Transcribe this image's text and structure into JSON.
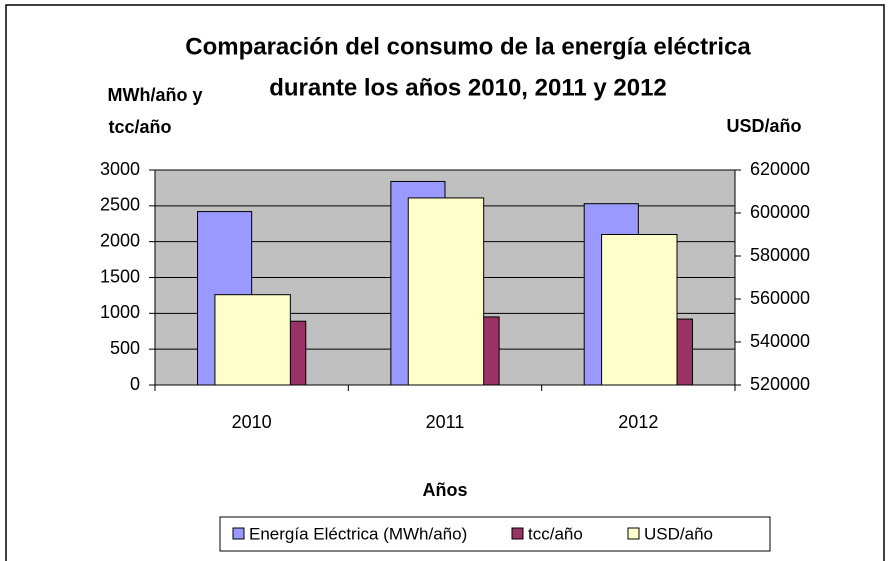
{
  "chart_data": {
    "type": "bar",
    "title": [
      "Comparación del consumo de la energía eléctrica",
      "durante los años 2010, 2011 y 2012"
    ],
    "y_label": [
      "MWh/año y",
      "tcc/año"
    ],
    "y2_label": "USD/año",
    "x_label": "Años",
    "categories": [
      "2010",
      "2011",
      "2012"
    ],
    "series": [
      {
        "name": "Energía Eléctrica (MWh/año)",
        "color": "#9999ff",
        "values": [
          2420,
          2840,
          2530
        ]
      },
      {
        "name": "tcc/año",
        "color": "#993366",
        "values": [
          890,
          950,
          920
        ]
      },
      {
        "name": "USD/año",
        "color": "#ffffcc",
        "values": [
          562000,
          607000,
          590000
        ],
        "axis": "y2"
      }
    ],
    "ylim": [
      0,
      3000
    ],
    "yticks": [
      0,
      500,
      1000,
      1500,
      2000,
      2500,
      3000
    ],
    "y2lim": [
      520000,
      620000
    ],
    "y2ticks": [
      520000,
      540000,
      560000,
      580000,
      600000,
      620000
    ],
    "grid": true,
    "legend": "bottom"
  }
}
